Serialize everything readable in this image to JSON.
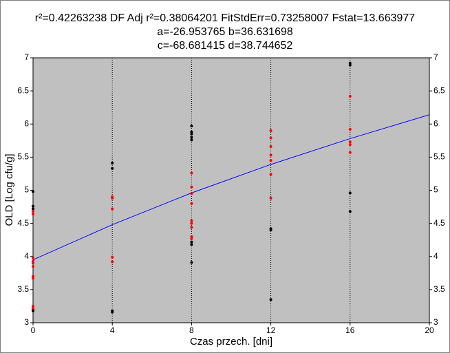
{
  "chart_data": {
    "type": "scatter",
    "title_lines": [
      "r²=0.42263238  DF Adj r²=0.38064201  FitStdErr=0.73258007  Fstat=13.663977",
      "a=-26.953765 b=36.631698",
      "c=-68.681415 d=38.744652"
    ],
    "x_label": "Czas przech. [dni]",
    "y_label": "OLD [Log cfu/g]",
    "xlim": [
      0,
      20
    ],
    "xticks": [
      0,
      4,
      8,
      12,
      16,
      20
    ],
    "ylim": [
      3,
      7
    ],
    "yticks": [
      3,
      3.5,
      4,
      4.5,
      5,
      5.5,
      6,
      6.5,
      7
    ],
    "xgrid": true,
    "background": "#c0c0c0",
    "series": [
      {
        "color": "#000000",
        "x": [
          0,
          0,
          0,
          0,
          0,
          4,
          4,
          4,
          4,
          8,
          8,
          8,
          8,
          8,
          8,
          8,
          8,
          12,
          12,
          12,
          16,
          16,
          16,
          16
        ],
        "values": [
          4.98,
          4.76,
          4.72,
          3.2,
          3.18,
          5.41,
          5.33,
          3.18,
          3.16,
          5.97,
          5.88,
          5.85,
          5.8,
          5.76,
          4.22,
          4.18,
          3.91,
          4.42,
          4.4,
          3.35,
          6.92,
          6.89,
          4.96,
          4.68
        ]
      },
      {
        "color": "#ff0000",
        "x": [
          0,
          0,
          0,
          0,
          0,
          0,
          0,
          0,
          0,
          0,
          4,
          4,
          4,
          4,
          4,
          8,
          8,
          8,
          8,
          8,
          8,
          8,
          8,
          8,
          12,
          12,
          12,
          12,
          12,
          12,
          12,
          16,
          16,
          16,
          16,
          16
        ],
        "values": [
          4.68,
          4.64,
          3.98,
          3.93,
          3.9,
          3.85,
          3.7,
          3.67,
          3.25,
          3.22,
          4.9,
          4.88,
          4.72,
          3.99,
          3.92,
          5.26,
          5.05,
          4.95,
          4.8,
          4.54,
          4.5,
          4.44,
          4.3,
          4.27,
          5.9,
          5.79,
          5.66,
          5.53,
          5.45,
          5.24,
          4.88,
          6.42,
          5.92,
          5.73,
          5.69,
          5.57
        ]
      }
    ],
    "fit": {
      "color": "#0000ff",
      "x": [
        0,
        4,
        8,
        12,
        16,
        20
      ],
      "values": [
        3.95,
        4.48,
        4.96,
        5.39,
        5.78,
        6.14
      ]
    }
  }
}
